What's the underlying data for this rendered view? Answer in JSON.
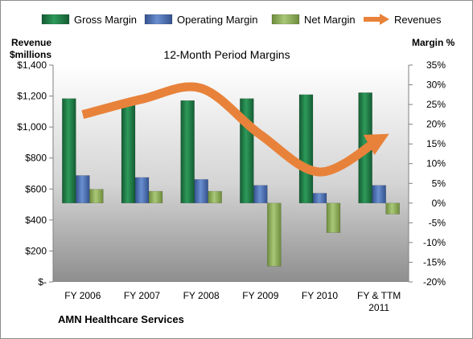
{
  "chart_data": {
    "type": "bar",
    "title": "12-Month Period Margins",
    "company": "AMN Healthcare Services",
    "left_axis": {
      "label_line1": "Revenue",
      "label_line2": "$millions",
      "ylim": [
        0,
        1400
      ],
      "ticks": [
        0,
        200,
        400,
        600,
        800,
        1000,
        1200,
        1400
      ],
      "tick_labels": [
        "$-",
        "$200",
        "$400",
        "$600",
        "$800",
        "$1,000",
        "$1,200",
        "$1,400"
      ]
    },
    "right_axis": {
      "label": "Margin %",
      "ylim": [
        -20,
        35
      ],
      "ticks": [
        -20,
        -15,
        -10,
        -5,
        0,
        5,
        10,
        15,
        20,
        25,
        30,
        35
      ],
      "tick_labels": [
        "-20%",
        "-15%",
        "-10%",
        "-5%",
        "0%",
        "5%",
        "10%",
        "15%",
        "20%",
        "25%",
        "30%",
        "35%"
      ]
    },
    "categories": [
      "FY 2006",
      "FY 2007",
      "FY 2008",
      "FY 2009",
      "FY 2010",
      "FY & TTM 2011"
    ],
    "series": [
      {
        "name": "Gross Margin",
        "axis": "right",
        "color": "#1e7b45",
        "values": [
          26.5,
          26.0,
          26.0,
          26.5,
          27.5,
          28.0
        ]
      },
      {
        "name": "Operating Margin",
        "axis": "right",
        "color": "#4a6fb5",
        "values": [
          7.0,
          6.5,
          6.0,
          4.5,
          2.5,
          4.5
        ]
      },
      {
        "name": "Net Margin",
        "axis": "right",
        "color": "#8fb05a",
        "values": [
          3.5,
          3.0,
          3.0,
          -16.0,
          -7.5,
          -2.8
        ]
      },
      {
        "name": "Revenues",
        "axis": "left",
        "type": "line",
        "color": "#e8823a",
        "values": [
          1080,
          1180,
          1250,
          950,
          710,
          920
        ]
      }
    ],
    "legend_position": "top",
    "grid": false
  }
}
